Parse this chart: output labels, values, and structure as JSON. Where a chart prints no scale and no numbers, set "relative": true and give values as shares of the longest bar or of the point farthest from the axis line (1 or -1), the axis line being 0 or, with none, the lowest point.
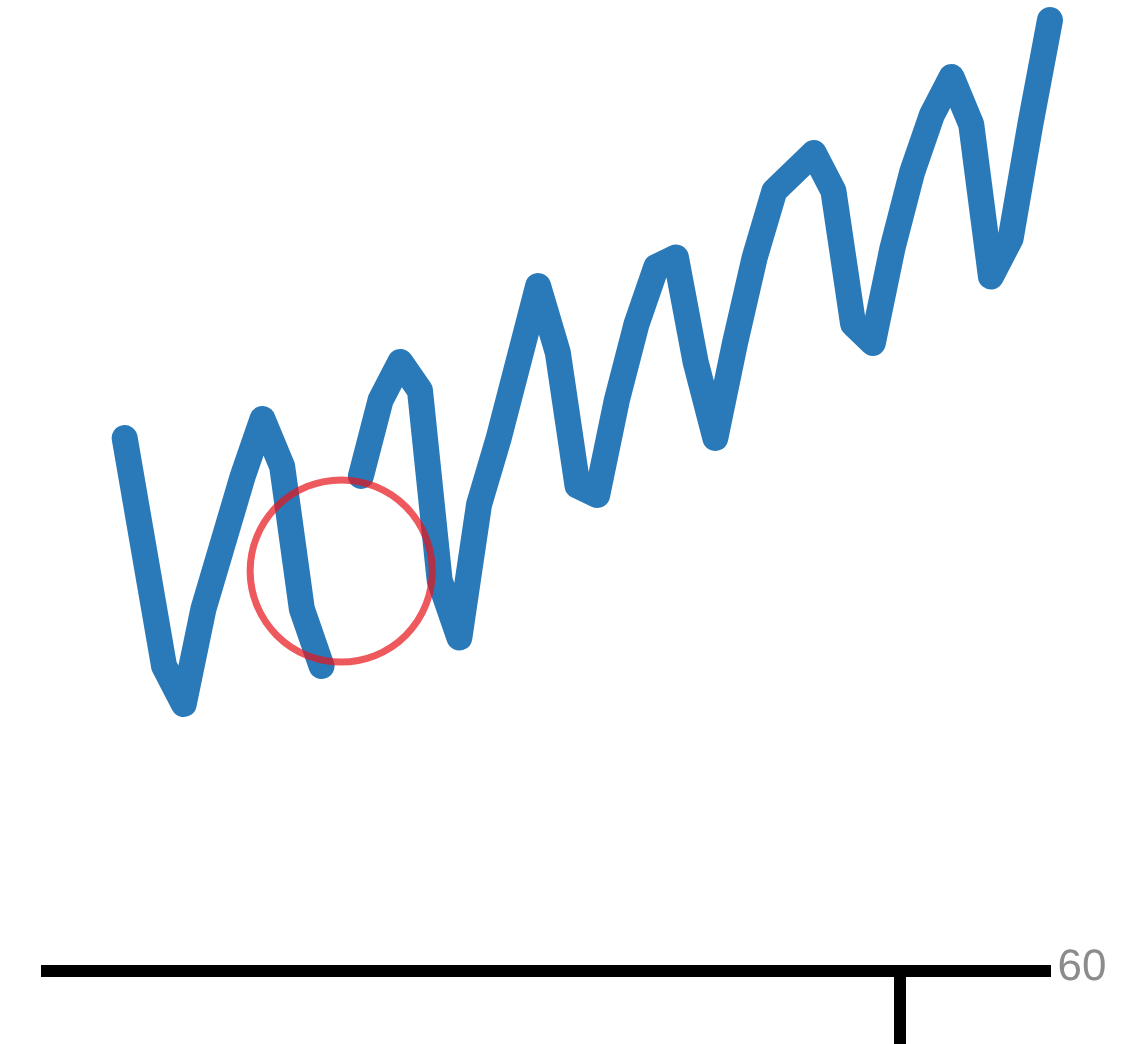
{
  "chart_data": {
    "type": "line",
    "relative": true,
    "categories": [
      null,
      null,
      null,
      null,
      null,
      null,
      null,
      null,
      null,
      null,
      null,
      null,
      null,
      null,
      null,
      null,
      null,
      null,
      null,
      null,
      null,
      null,
      null,
      null,
      null,
      null,
      null,
      null,
      null,
      null,
      null,
      null,
      null,
      null,
      null,
      null,
      null,
      null,
      null,
      null,
      null,
      null,
      null,
      null,
      null,
      null,
      null,
      null
    ],
    "series": [
      {
        "color": "#2a7ab9",
        "values": [
          0.56,
          0.44,
          0.32,
          0.28,
          0.38,
          0.45,
          0.52,
          0.58,
          0.53,
          0.38,
          0.32,
          null,
          null,
          null,
          null,
          null,
          null,
          null,
          null,
          null,
          null,
          null,
          null,
          null,
          null,
          null,
          null,
          null,
          null,
          null,
          null,
          null,
          null,
          null,
          null,
          null,
          null,
          null,
          null,
          null,
          null,
          null,
          null,
          null,
          null,
          null,
          null,
          null
        ]
      },
      {
        "color": "#2a7ab9",
        "values": [
          null,
          null,
          null,
          null,
          null,
          null,
          null,
          null,
          null,
          null,
          null,
          null,
          0.52,
          0.6,
          0.64,
          0.61,
          0.41,
          0.35,
          0.49,
          0.56,
          0.64,
          0.72,
          0.65,
          0.51,
          0.5,
          0.6,
          0.68,
          0.74,
          0.75,
          0.64,
          0.56,
          0.66,
          0.75,
          0.82,
          0.84,
          0.86,
          0.82,
          0.68,
          0.66,
          0.76,
          0.84,
          0.9,
          0.94,
          0.89,
          0.73,
          0.77,
          0.89,
          1.0
        ]
      }
    ],
    "annotations": [
      "60"
    ],
    "marker": "none",
    "line_style": "solid",
    "grid": false
  }
}
